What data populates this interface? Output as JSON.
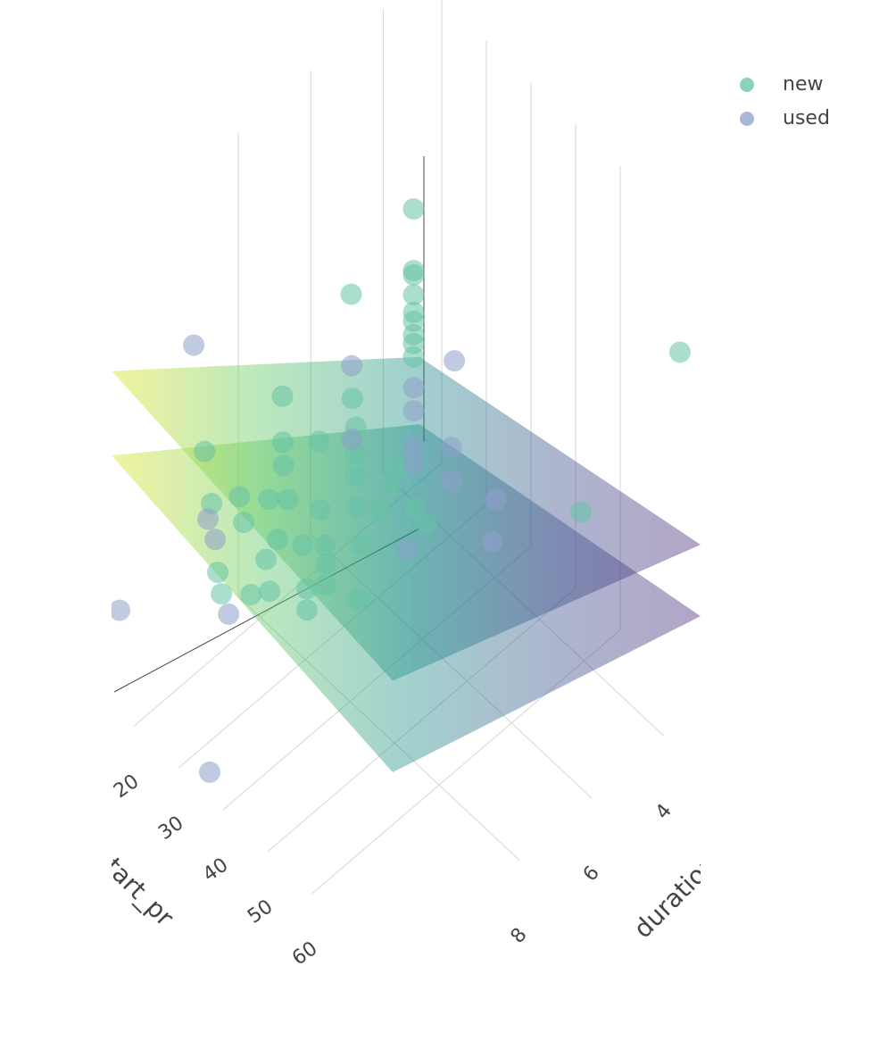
{
  "chart_data": {
    "type": "scatter3d",
    "x_title": "start_pr",
    "y_title": "duration",
    "xlim": [
      15,
      78
    ],
    "ylim": [
      3,
      11.5
    ],
    "zlim": [
      0,
      100
    ],
    "xticks": [
      20,
      30,
      40,
      50,
      60
    ],
    "yticks": [
      4,
      6,
      8
    ],
    "legend_position": "top-right",
    "marker_opacity": 0.55,
    "surface_opacity": 0.42,
    "colorscale": [
      "#dde318",
      "#5ec962",
      "#21918c",
      "#3b528b",
      "#482878"
    ],
    "series": [
      {
        "name": "new",
        "color": "#66c2a5",
        "x": [
          21,
          21,
          21,
          21,
          21,
          21,
          21,
          21,
          21,
          40,
          40,
          20,
          75,
          20,
          18,
          25,
          25,
          30,
          25,
          22,
          30,
          35,
          35,
          40,
          30,
          40,
          40,
          45,
          35,
          50,
          25,
          25,
          30,
          35,
          45,
          50,
          55,
          45,
          45,
          45,
          45,
          45,
          65,
          30,
          30,
          30,
          30
        ],
        "y": [
          3.9,
          3.9,
          3.9,
          3.9,
          3.9,
          3.9,
          3.9,
          3.9,
          3.9,
          6.2,
          5.9,
          5.5,
          3.2,
          7.4,
          9.3,
          8.0,
          7.0,
          8.6,
          9.2,
          9.6,
          9.0,
          9.1,
          8.2,
          7.8,
          9.7,
          10.0,
          9.3,
          9.3,
          9.7,
          9.9,
          9.8,
          9.7,
          9.5,
          9.6,
          9.8,
          9.9,
          9.6,
          9.8,
          8.3,
          7.8,
          7.5,
          7.3,
          4.7,
          6.7,
          6.6,
          6.6,
          6.6
        ],
        "z": [
          61.6,
          48.3,
          47.4,
          43.1,
          39.3,
          37.4,
          34.5,
          32.6,
          29.7,
          29.5,
          24.4,
          53,
          74.7,
          43.7,
          42.7,
          42.3,
          35.8,
          45.8,
          38.6,
          37.1,
          41.2,
          46.3,
          38.1,
          40.5,
          40.9,
          48.2,
          42.3,
          46.8,
          37.4,
          51.3,
          26.3,
          21.0,
          24.0,
          29.9,
          40.8,
          46.8,
          46.1,
          36.2,
          40.2,
          44.1,
          47.6,
          50.2,
          41.2,
          47.6,
          40.7,
          35.0,
          30.2
        ]
      },
      {
        "name": "used",
        "color": "#8da0cb",
        "x": [
          21,
          21,
          21,
          21,
          18,
          35,
          25,
          40,
          40,
          50,
          50,
          40,
          16,
          25,
          37,
          25,
          22,
          22
        ],
        "y": [
          3.9,
          3.9,
          3.9,
          3.9,
          9.6,
          4.5,
          6.1,
          5.2,
          5.2,
          5.2,
          5.3,
          6.4,
          11.4,
          9.5,
          11.5,
          6.1,
          9.7,
          9.5
        ],
        "z": [
          23.1,
          18.1,
          10.4,
          6.6,
          67.6,
          45.5,
          46.1,
          36.0,
          28.7,
          33.8,
          25.4,
          22.0,
          20.7,
          15.3,
          5.4,
          30.3,
          34.4,
          28.7
        ]
      }
    ],
    "surfaces": [
      {
        "x": [
          15,
          78
        ],
        "y": [
          3,
          11.5
        ],
        "z": [
          [
            18.3,
            34.6
          ],
          [
            72,
            62
          ]
        ]
      },
      {
        "x": [
          15,
          78
        ],
        "y": [
          3,
          11.5
        ],
        "z": [
          [
            3.8,
            19.2
          ],
          [
            53.8,
            42.3
          ]
        ]
      }
    ]
  }
}
